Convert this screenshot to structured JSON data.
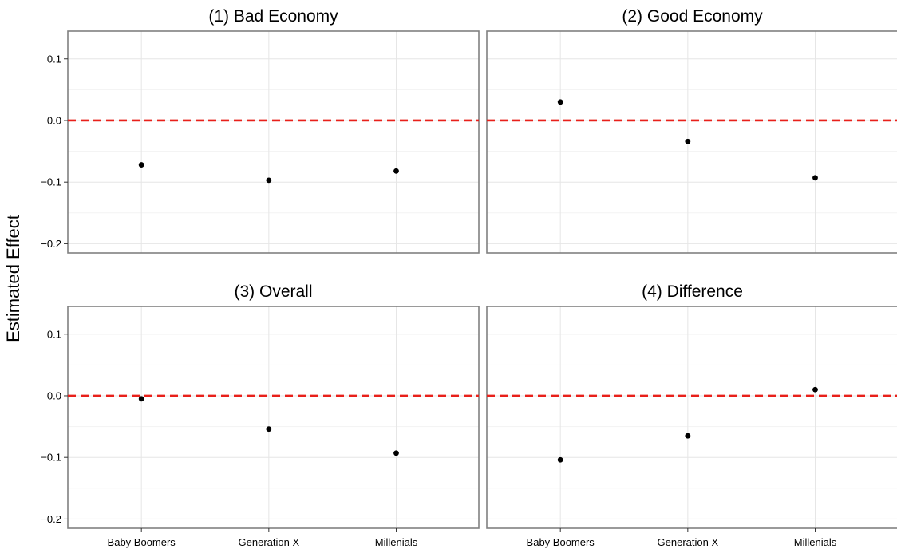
{
  "chart_data": {
    "type": "scatter",
    "ylabel": "Estimated Effect",
    "xlabel": "",
    "categories": [
      "Baby Boomers",
      "Generation X",
      "Millenials"
    ],
    "ylim": [
      -0.215,
      0.145
    ],
    "y_ticks": [
      0.1,
      0.0,
      -0.1,
      -0.2
    ],
    "y_tick_labels": [
      "0.1",
      "0.0",
      "−0.1",
      "−0.2"
    ],
    "reference_line": {
      "y": 0,
      "style": "dashed",
      "color": "#e8201a"
    },
    "point_color": "#000000",
    "grid": true,
    "panels": [
      {
        "title": "(1) Bad Economy",
        "values": [
          -0.072,
          -0.097,
          -0.082
        ]
      },
      {
        "title": "(2) Good Economy",
        "values": [
          0.03,
          -0.034,
          -0.093
        ]
      },
      {
        "title": "(3) Overall",
        "values": [
          -0.005,
          -0.054,
          -0.093
        ]
      },
      {
        "title": "(4) Difference",
        "values": [
          -0.104,
          -0.065,
          0.01
        ]
      }
    ]
  }
}
